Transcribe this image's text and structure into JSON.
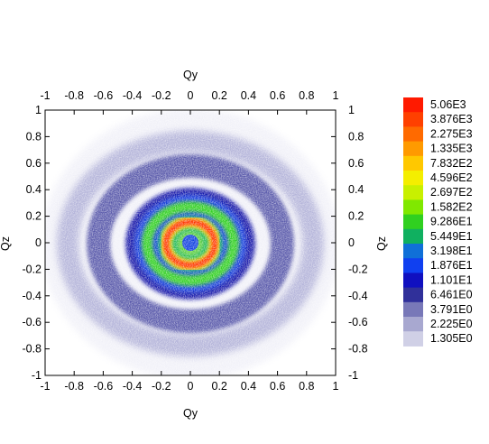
{
  "chart_data": {
    "type": "heatmap",
    "xlabel_top": "Qy",
    "xlabel_bottom": "Qy",
    "ylabel_left": "Qz",
    "ylabel_right": "Qz",
    "xlim": [
      -1,
      1
    ],
    "ylim": [
      -1,
      1
    ],
    "x_ticks": [
      "-1",
      "-0.8",
      "-0.6",
      "-0.4",
      "-0.2",
      "0",
      "0.2",
      "0.4",
      "0.6",
      "0.8",
      "1"
    ],
    "y_ticks": [
      "1",
      "0.8",
      "0.6",
      "0.4",
      "0.2",
      "0",
      "-0.2",
      "-0.4",
      "-0.6",
      "-0.8",
      "-1"
    ],
    "x_tick_values": [
      -1,
      -0.8,
      -0.6,
      -0.4,
      -0.2,
      0,
      0.2,
      0.4,
      0.6,
      0.8,
      1
    ],
    "y_tick_values": [
      1,
      0.8,
      0.6,
      0.4,
      0.2,
      0,
      -0.2,
      -0.4,
      -0.6,
      -0.8,
      -1
    ],
    "grid": false,
    "legend_position": "right",
    "colorbar": {
      "labels": [
        "5.06E3",
        "3.876E3",
        "2.275E3",
        "1.335E3",
        "7.832E2",
        "4.596E2",
        "2.697E2",
        "1.582E2",
        "9.286E1",
        "5.449E1",
        "3.198E1",
        "1.876E1",
        "1.101E1",
        "6.461E0",
        "3.791E0",
        "2.225E0",
        "1.305E0"
      ],
      "colors": [
        "#ff1a00",
        "#ff4000",
        "#ff6a00",
        "#ff9a00",
        "#ffc800",
        "#f4ee00",
        "#c8f000",
        "#80e800",
        "#30d020",
        "#10b060",
        "#1070d8",
        "#1040f0",
        "#1010c0",
        "#30309a",
        "#7878b8",
        "#a8a8d0",
        "#d0d0e6"
      ]
    },
    "pattern": {
      "description_type": "concentric elliptical rings",
      "center": [
        0,
        0
      ],
      "rings": [
        {
          "radius_y": 0.09,
          "radius_z": 0.08,
          "level": "9.286E1"
        },
        {
          "radius_y": 0.16,
          "radius_z": 0.16,
          "level": "5.06E3"
        },
        {
          "radius_y": 0.29,
          "radius_z": 0.27,
          "level": "1.582E2"
        },
        {
          "radius_y": 0.64,
          "radius_z": 0.58,
          "level": "6.461E0"
        },
        {
          "radius_y": 0.85,
          "radius_z": 0.78,
          "level": "3.791E0"
        }
      ]
    }
  }
}
